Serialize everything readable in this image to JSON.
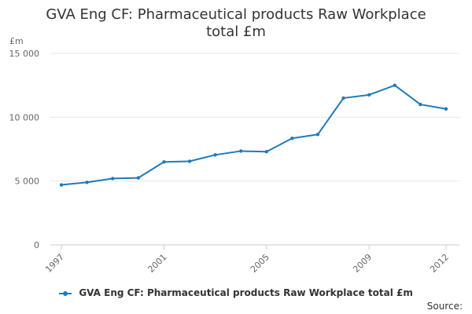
{
  "chart_data": {
    "type": "line",
    "title": "GVA Eng CF: Pharmaceutical products Raw Workplace total £m",
    "ylabel": "£m",
    "xlabel": "",
    "x": [
      1997,
      1998,
      1999,
      2000,
      2001,
      2002,
      2003,
      2004,
      2005,
      2006,
      2007,
      2008,
      2009,
      2010,
      2011,
      2012
    ],
    "x_tick_labels": [
      "1997",
      "2001",
      "2005",
      "2009",
      "2012"
    ],
    "x_tick_values": [
      1997,
      2001,
      2005,
      2009,
      2012
    ],
    "y_tick_labels": [
      "0",
      "5 000",
      "10 000",
      "15 000"
    ],
    "y_tick_values": [
      0,
      5000,
      10000,
      15000
    ],
    "ylim": [
      0,
      15000
    ],
    "xlim": [
      1997,
      2012
    ],
    "grid": true,
    "legend_position": "bottom",
    "series": [
      {
        "name": "GVA Eng CF: Pharmaceutical products Raw Workplace total £m",
        "color": "#1f7ab8",
        "values": [
          4700,
          4900,
          5200,
          5250,
          6500,
          6550,
          7050,
          7350,
          7300,
          8350,
          8650,
          11500,
          11750,
          12500,
          11000,
          10650
        ]
      }
    ]
  },
  "source_label": "Source:"
}
